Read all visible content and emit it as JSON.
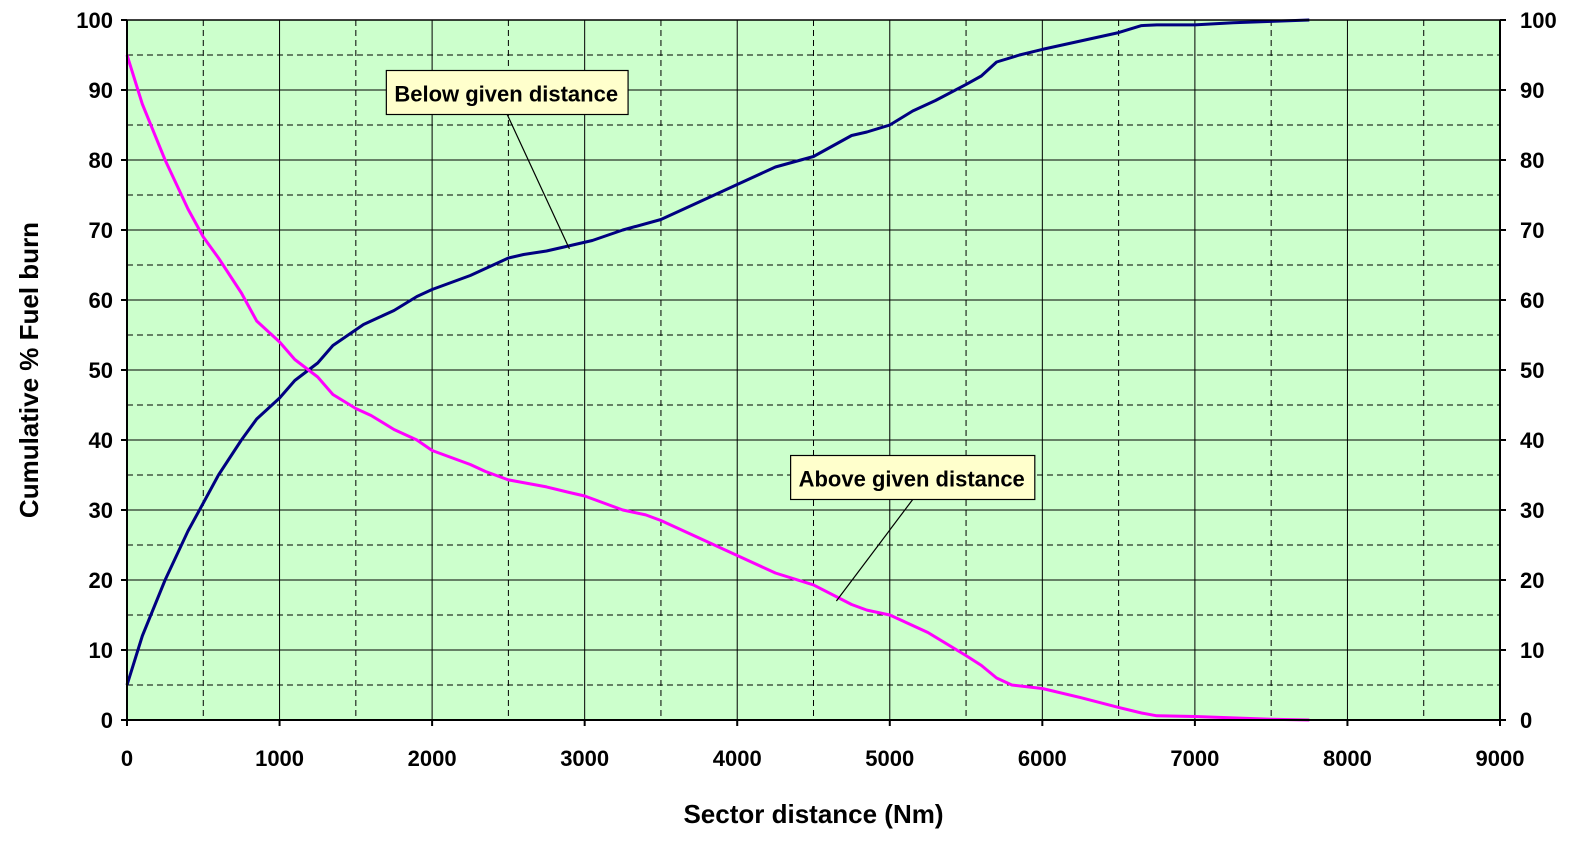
{
  "chart_data": {
    "type": "line",
    "xlabel": "Sector distance (Nm)",
    "ylabel": "Cumulative % Fuel burn",
    "xlim": [
      0,
      9000
    ],
    "ylim": [
      0,
      100
    ],
    "x_ticks": [
      0,
      1000,
      2000,
      3000,
      4000,
      5000,
      6000,
      7000,
      8000,
      9000
    ],
    "x_minor_grid": [
      500,
      1500,
      2500,
      3500,
      4500,
      5500,
      6500,
      7500,
      8500
    ],
    "y_ticks": [
      0,
      10,
      20,
      30,
      40,
      50,
      60,
      70,
      80,
      90,
      100
    ],
    "y_minor_grid": [
      5,
      15,
      25,
      35,
      45,
      55,
      65,
      75,
      85,
      95
    ],
    "y_axis_right": true,
    "grid": true,
    "legend": "none",
    "colors": {
      "plot_background": "#ccffcc",
      "gridline": "#000000"
    },
    "series": [
      {
        "name": "Below given distance",
        "color": "#000080",
        "points": [
          [
            0,
            5
          ],
          [
            100,
            12
          ],
          [
            250,
            20
          ],
          [
            400,
            27
          ],
          [
            500,
            31
          ],
          [
            550,
            33
          ],
          [
            600,
            35
          ],
          [
            750,
            40
          ],
          [
            850,
            43
          ],
          [
            1000,
            46
          ],
          [
            1100,
            48.5
          ],
          [
            1250,
            51
          ],
          [
            1350,
            53.5
          ],
          [
            1450,
            55
          ],
          [
            1550,
            56.5
          ],
          [
            1650,
            57.5
          ],
          [
            1750,
            58.5
          ],
          [
            1900,
            60.5
          ],
          [
            2000,
            61.5
          ],
          [
            2250,
            63.5
          ],
          [
            2500,
            66
          ],
          [
            2600,
            66.5
          ],
          [
            2750,
            67
          ],
          [
            2850,
            67.5
          ],
          [
            3050,
            68.5
          ],
          [
            3250,
            70
          ],
          [
            3500,
            71.5
          ],
          [
            3750,
            74
          ],
          [
            4000,
            76.5
          ],
          [
            4250,
            79
          ],
          [
            4500,
            80.5
          ],
          [
            4750,
            83.5
          ],
          [
            4850,
            84
          ],
          [
            5000,
            85
          ],
          [
            5150,
            87
          ],
          [
            5300,
            88.5
          ],
          [
            5500,
            90.8
          ],
          [
            5600,
            92
          ],
          [
            5700,
            94
          ],
          [
            5850,
            95
          ],
          [
            6000,
            95.8
          ],
          [
            6250,
            97
          ],
          [
            6500,
            98.2
          ],
          [
            6650,
            99.2
          ],
          [
            6750,
            99.3
          ],
          [
            7000,
            99.3
          ],
          [
            7250,
            99.6
          ],
          [
            7500,
            99.8
          ],
          [
            7750,
            100
          ]
        ]
      },
      {
        "name": "Above given distance",
        "color": "#ff00ff",
        "points": [
          [
            0,
            95
          ],
          [
            100,
            88
          ],
          [
            250,
            80
          ],
          [
            400,
            73
          ],
          [
            500,
            69
          ],
          [
            600,
            66
          ],
          [
            750,
            61
          ],
          [
            850,
            57
          ],
          [
            1000,
            54
          ],
          [
            1100,
            51.5
          ],
          [
            1250,
            49
          ],
          [
            1350,
            46.5
          ],
          [
            1500,
            44.5
          ],
          [
            1600,
            43.5
          ],
          [
            1750,
            41.5
          ],
          [
            1900,
            40
          ],
          [
            2000,
            38.5
          ],
          [
            2250,
            36.5
          ],
          [
            2350,
            35.5
          ],
          [
            2500,
            34.3
          ],
          [
            2750,
            33.3
          ],
          [
            2900,
            32.5
          ],
          [
            3000,
            32
          ],
          [
            3150,
            30.8
          ],
          [
            3250,
            30
          ],
          [
            3400,
            29.3
          ],
          [
            3500,
            28.5
          ],
          [
            3750,
            26
          ],
          [
            4000,
            23.5
          ],
          [
            4250,
            21
          ],
          [
            4500,
            19.3
          ],
          [
            4750,
            16.5
          ],
          [
            4850,
            15.7
          ],
          [
            5000,
            15
          ],
          [
            5250,
            12.5
          ],
          [
            5500,
            9.2
          ],
          [
            5600,
            7.8
          ],
          [
            5700,
            6
          ],
          [
            5800,
            5
          ],
          [
            6000,
            4.5
          ],
          [
            6250,
            3.2
          ],
          [
            6500,
            1.8
          ],
          [
            6650,
            1
          ],
          [
            6750,
            0.6
          ],
          [
            7000,
            0.5
          ],
          [
            7250,
            0.3
          ],
          [
            7500,
            0.1
          ],
          [
            7750,
            0
          ]
        ]
      }
    ],
    "annotations": [
      {
        "text": "Below given distance",
        "series": 0,
        "label_at": [
          1700,
          86.5
        ],
        "arrow_to": [
          2900,
          67.3
        ]
      },
      {
        "text": "Above given distance",
        "series": 1,
        "label_at": [
          4350,
          31.5
        ],
        "arrow_to": [
          4650,
          17
        ]
      }
    ]
  }
}
